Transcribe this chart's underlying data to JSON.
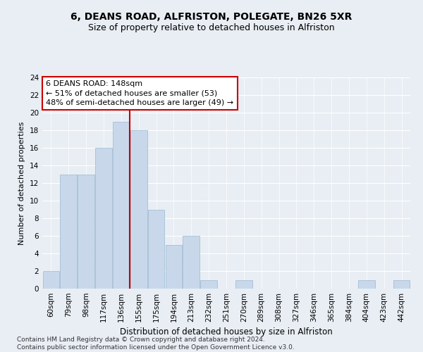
{
  "title1": "6, DEANS ROAD, ALFRISTON, POLEGATE, BN26 5XR",
  "title2": "Size of property relative to detached houses in Alfriston",
  "xlabel": "Distribution of detached houses by size in Alfriston",
  "ylabel": "Number of detached properties",
  "categories": [
    "60sqm",
    "79sqm",
    "98sqm",
    "117sqm",
    "136sqm",
    "155sqm",
    "175sqm",
    "194sqm",
    "213sqm",
    "232sqm",
    "251sqm",
    "270sqm",
    "289sqm",
    "308sqm",
    "327sqm",
    "346sqm",
    "365sqm",
    "384sqm",
    "404sqm",
    "423sqm",
    "442sqm"
  ],
  "values": [
    2,
    13,
    13,
    16,
    19,
    18,
    9,
    5,
    6,
    1,
    0,
    1,
    0,
    0,
    0,
    0,
    0,
    0,
    1,
    0,
    1
  ],
  "bar_color": "#c8d8ea",
  "bar_edge_color": "#9ab8d0",
  "vline_x": 4.5,
  "vline_color": "#cc0000",
  "annotation_text": "6 DEANS ROAD: 148sqm\n← 51% of detached houses are smaller (53)\n48% of semi-detached houses are larger (49) →",
  "annotation_box_facecolor": "#ffffff",
  "annotation_box_edgecolor": "#cc0000",
  "ylim": [
    0,
    24
  ],
  "yticks": [
    0,
    2,
    4,
    6,
    8,
    10,
    12,
    14,
    16,
    18,
    20,
    22,
    24
  ],
  "footnote": "Contains HM Land Registry data © Crown copyright and database right 2024.\nContains public sector information licensed under the Open Government Licence v3.0.",
  "bg_color": "#e8eef4",
  "grid_color": "#ffffff",
  "title1_fontsize": 10,
  "title2_fontsize": 9,
  "xlabel_fontsize": 8.5,
  "ylabel_fontsize": 8,
  "tick_fontsize": 7.5,
  "annot_fontsize": 8,
  "footnote_fontsize": 6.5
}
